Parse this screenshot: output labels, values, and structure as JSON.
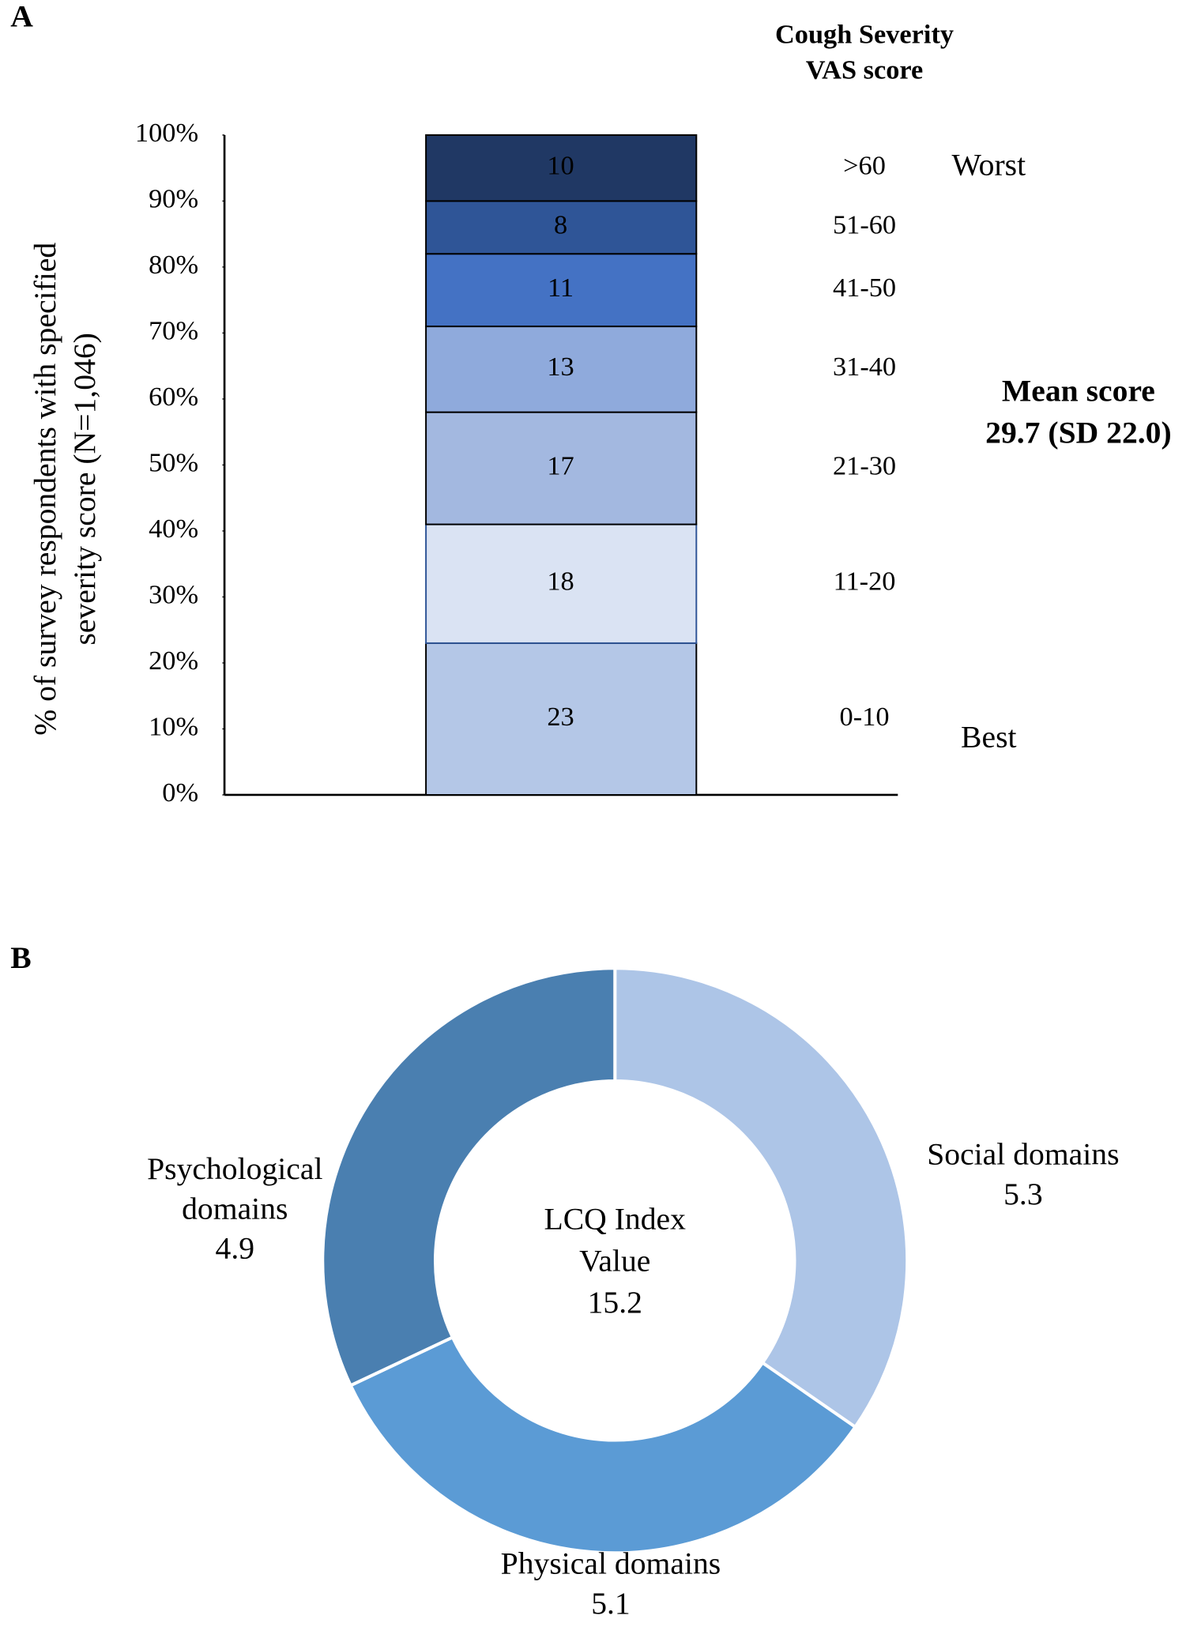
{
  "chart_data": [
    {
      "type": "stacked-bar",
      "panel": "A",
      "header": [
        "Cough Severity",
        "VAS score"
      ],
      "ylabel": [
        "% of survey respondents with specified",
        "severity score (N=1,046)"
      ],
      "ylim": [
        0,
        100
      ],
      "yticks": [
        {
          "value": 0,
          "label": "0%"
        },
        {
          "value": 10,
          "label": "10%"
        },
        {
          "value": 20,
          "label": "20%"
        },
        {
          "value": 30,
          "label": "30%"
        },
        {
          "value": 40,
          "label": "40%"
        },
        {
          "value": 50,
          "label": "50%"
        },
        {
          "value": 60,
          "label": "60%"
        },
        {
          "value": 70,
          "label": "70%"
        },
        {
          "value": 80,
          "label": "80%"
        },
        {
          "value": 90,
          "label": "90%"
        },
        {
          "value": 100,
          "label": "100%"
        }
      ],
      "series": [
        {
          "name": "0-10",
          "color": "#b4c7e7",
          "values": [
            23
          ]
        },
        {
          "name": "11-20",
          "color": "#dae3f3",
          "values": [
            18
          ]
        },
        {
          "name": "21-30",
          "color": "#a3b8e0",
          "values": [
            17
          ]
        },
        {
          "name": "31-40",
          "color": "#8faadc",
          "values": [
            13
          ]
        },
        {
          "name": "41-50",
          "color": "#4472c4",
          "values": [
            11
          ]
        },
        {
          "name": "51-60",
          "color": "#2f5597",
          "values": [
            8
          ]
        },
        {
          "name": ">60",
          "color": "#203864",
          "values": [
            10
          ]
        }
      ],
      "annotations": [
        "Worst",
        "Best",
        "Mean score",
        "29.7 (SD 22.0)"
      ]
    },
    {
      "type": "donut",
      "panel": "B",
      "categories": [
        "Social domains",
        "Physical domains",
        "Psychological domains"
      ],
      "values": [
        5.3,
        5.1,
        4.9
      ],
      "colors": [
        "#adc5e7",
        "#5b9bd5",
        "#4a7fb0"
      ],
      "center_text": [
        "LCQ Index",
        "Value",
        "15.2"
      ]
    }
  ]
}
